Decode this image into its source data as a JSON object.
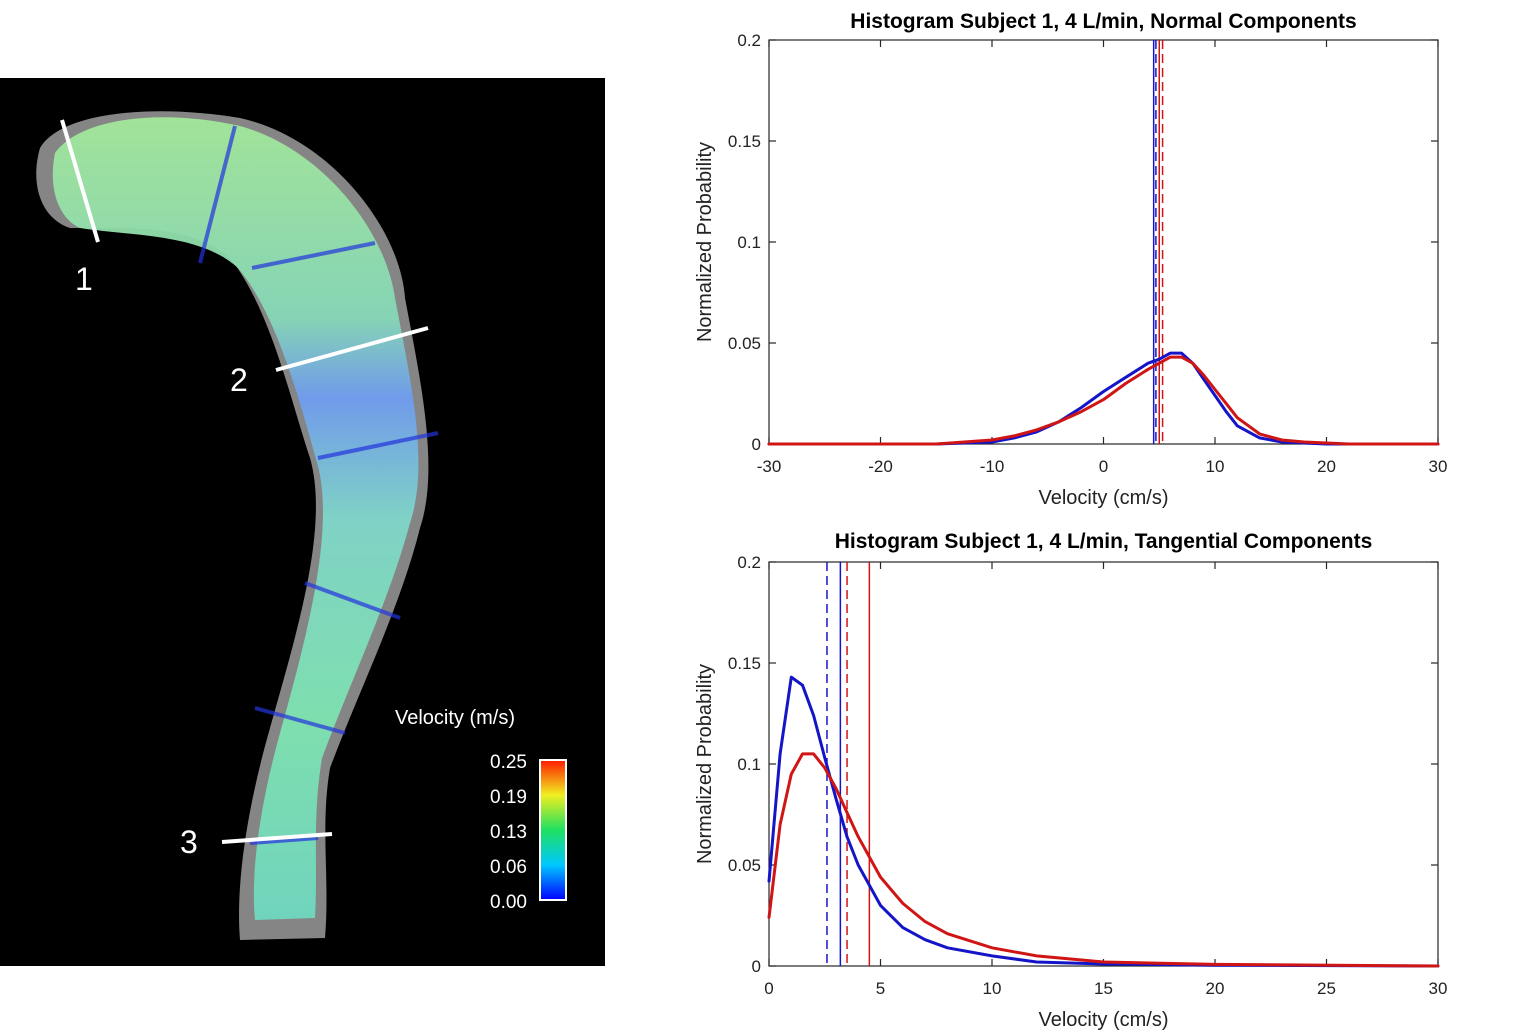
{
  "vessel": {
    "colorbar_title": "Velocity (m/s)",
    "colorbar_ticks": [
      "0.25",
      "0.19",
      "0.13",
      "0.06",
      "0.00"
    ],
    "section_labels": [
      "1",
      "2",
      "3"
    ],
    "colors": {
      "background": "#000000",
      "vessel_shell": "#a9a9a9",
      "flow_mid": "#7fe0a8",
      "flow_low": "#4f7bff",
      "section_line": "#ffffff"
    }
  },
  "series_colors": {
    "subject_a": "#1515c8",
    "subject_b": "#d01515"
  },
  "chart_data": [
    {
      "type": "line",
      "title": "Histogram Subject 1, 4 L/min, Normal Components",
      "xlabel": "Velocity (cm/s)",
      "ylabel": "Normalized Probability",
      "xlim": [
        -30,
        30
      ],
      "ylim": [
        0,
        0.2
      ],
      "xticks": [
        -30,
        -20,
        -10,
        0,
        10,
        20,
        30
      ],
      "yticks": [
        0,
        0.05,
        0.1,
        0.15,
        0.2
      ],
      "xtick_labels": [
        "-30",
        "-20",
        "-10",
        "0",
        "10",
        "20",
        "30"
      ],
      "ytick_labels": [
        "0",
        "0.05",
        "0.1",
        "0.15",
        "0.2"
      ],
      "series": [
        {
          "name": "blue",
          "color": "#1515c8",
          "x": [
            -30,
            -15,
            -10,
            -8,
            -6,
            -4,
            -2,
            0,
            2,
            4,
            5,
            6,
            7,
            8,
            9,
            10,
            11,
            12,
            14,
            16,
            20,
            30
          ],
          "y": [
            0,
            0,
            0.001,
            0.003,
            0.006,
            0.011,
            0.018,
            0.026,
            0.033,
            0.04,
            0.042,
            0.045,
            0.045,
            0.04,
            0.032,
            0.024,
            0.016,
            0.009,
            0.003,
            0.001,
            0,
            0
          ]
        },
        {
          "name": "red",
          "color": "#d01515",
          "x": [
            -30,
            -15,
            -10,
            -8,
            -6,
            -4,
            -2,
            0,
            2,
            4,
            6,
            7,
            8,
            9,
            10,
            11,
            12,
            14,
            16,
            18,
            22,
            30
          ],
          "y": [
            0,
            0,
            0.002,
            0.004,
            0.007,
            0.011,
            0.016,
            0.022,
            0.03,
            0.037,
            0.043,
            0.043,
            0.04,
            0.034,
            0.027,
            0.02,
            0.013,
            0.005,
            0.002,
            0.001,
            0,
            0
          ]
        }
      ],
      "vlines": [
        {
          "x": 4.5,
          "style": "solid",
          "color": "#1515c8"
        },
        {
          "x": 4.7,
          "style": "dashed",
          "color": "#1515c8"
        },
        {
          "x": 5.0,
          "style": "solid",
          "color": "#d01515"
        },
        {
          "x": 5.3,
          "style": "dashed",
          "color": "#d01515"
        }
      ]
    },
    {
      "type": "line",
      "title": "Histogram Subject 1, 4 L/min, Tangential Components",
      "xlabel": "Velocity (cm/s)",
      "ylabel": "Normalized Probability",
      "xlim": [
        0,
        30
      ],
      "ylim": [
        0,
        0.2
      ],
      "xticks": [
        0,
        5,
        10,
        15,
        20,
        25,
        30
      ],
      "yticks": [
        0,
        0.05,
        0.1,
        0.15,
        0.2
      ],
      "xtick_labels": [
        "0",
        "5",
        "10",
        "15",
        "20",
        "25",
        "30"
      ],
      "ytick_labels": [
        "0",
        "0.05",
        "0.1",
        "0.15",
        "0.2"
      ],
      "series": [
        {
          "name": "blue",
          "color": "#1515c8",
          "x": [
            0,
            0.5,
            1.0,
            1.5,
            2.0,
            2.5,
            3.0,
            3.5,
            4.0,
            5.0,
            6.0,
            7.0,
            8.0,
            10.0,
            12.0,
            15.0,
            20.0,
            30.0
          ],
          "y": [
            0.042,
            0.105,
            0.143,
            0.139,
            0.124,
            0.103,
            0.083,
            0.064,
            0.05,
            0.03,
            0.019,
            0.013,
            0.009,
            0.005,
            0.002,
            0.001,
            0.0004,
            0
          ]
        },
        {
          "name": "red",
          "color": "#d01515",
          "x": [
            0,
            0.5,
            1.0,
            1.5,
            2.0,
            2.5,
            3.0,
            3.5,
            4.0,
            5.0,
            6.0,
            7.0,
            8.0,
            10.0,
            12.0,
            15.0,
            20.0,
            30.0
          ],
          "y": [
            0.024,
            0.07,
            0.095,
            0.105,
            0.105,
            0.098,
            0.088,
            0.076,
            0.064,
            0.044,
            0.031,
            0.022,
            0.016,
            0.009,
            0.005,
            0.002,
            0.0008,
            0
          ]
        }
      ],
      "vlines": [
        {
          "x": 2.6,
          "style": "dashed",
          "color": "#1515c8"
        },
        {
          "x": 3.2,
          "style": "solid",
          "color": "#1515c8"
        },
        {
          "x": 3.5,
          "style": "dashed",
          "color": "#d01515"
        },
        {
          "x": 4.5,
          "style": "solid",
          "color": "#d01515"
        }
      ]
    }
  ]
}
